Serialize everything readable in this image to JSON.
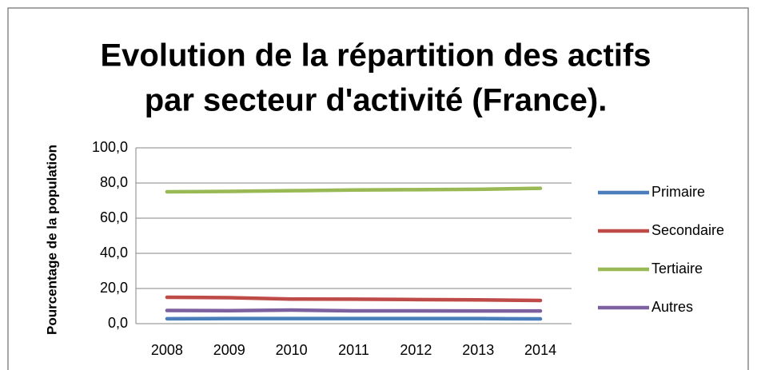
{
  "chart_data": {
    "type": "line",
    "title": [
      "Evolution de la répartition des actifs",
      "par secteur d'activité (France)."
    ],
    "y_label": "Pourcentage de la population",
    "categories": [
      "2008",
      "2009",
      "2010",
      "2011",
      "2012",
      "2013",
      "2014"
    ],
    "series": [
      {
        "name": "Primaire",
        "color": "#4a7ebb",
        "values": [
          2.8,
          2.9,
          2.9,
          2.9,
          2.9,
          2.9,
          2.7
        ]
      },
      {
        "name": "Secondaire",
        "color": "#be4b48",
        "values": [
          15.0,
          14.8,
          14.0,
          13.9,
          13.7,
          13.5,
          13.2
        ]
      },
      {
        "name": "Tertiaire",
        "color": "#98b954",
        "values": [
          75.0,
          75.2,
          75.6,
          76.0,
          76.2,
          76.4,
          77.0
        ]
      },
      {
        "name": "Autres",
        "color": "#7d60a0",
        "values": [
          7.5,
          7.4,
          7.7,
          7.3,
          7.3,
          7.2,
          7.2
        ]
      }
    ],
    "ylim": [
      0,
      100
    ],
    "yticks": [
      {
        "value": 0,
        "label": "0,0"
      },
      {
        "value": 20,
        "label": "20,0"
      },
      {
        "value": 40,
        "label": "40,0"
      },
      {
        "value": 60,
        "label": "60,0"
      },
      {
        "value": 80,
        "label": "80,0"
      },
      {
        "value": 100,
        "label": "100,0"
      }
    ],
    "grid": true,
    "legend": "right"
  }
}
